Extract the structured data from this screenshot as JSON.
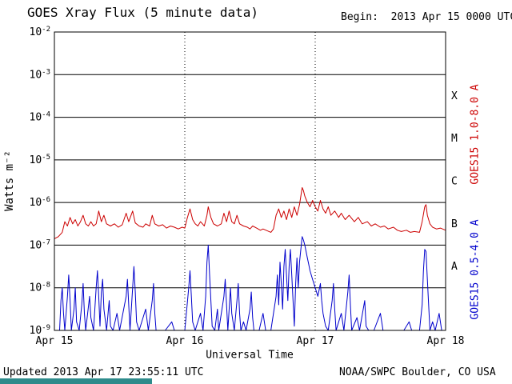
{
  "header": {
    "title": "GOES Xray Flux (5 minute data)",
    "begin_label": "Begin:  2013 Apr 15 0000 UTC"
  },
  "footer": {
    "updated": "Updated 2013 Apr 17 23:55:11 UTC",
    "source": "NOAA/SWPC Boulder, CO USA"
  },
  "colors": {
    "long_channel": "#cc0000",
    "short_channel": "#0000cc",
    "grid": "#000000",
    "background": "#ffffff",
    "bottom_bar": "#2e8b8b"
  },
  "chart_data": {
    "type": "line",
    "title": "GOES Xray Flux (5 minute data)",
    "xlabel": "Universal Time",
    "ylabel": "Watts m⁻²",
    "y_scale": "log10",
    "y_range_exponents": [
      -9,
      -2
    ],
    "y_tick_exponents": [
      -2,
      -3,
      -4,
      -5,
      -6,
      -7,
      -8,
      -9
    ],
    "x_unit": "days since 2013 Apr 15 0000 UTC",
    "x_range_days": [
      0,
      3
    ],
    "x_ticks": [
      {
        "label": "Apr 15",
        "day": 0
      },
      {
        "label": "Apr 16",
        "day": 1
      },
      {
        "label": "Apr 17",
        "day": 2
      },
      {
        "label": "Apr 18",
        "day": 3
      }
    ],
    "grid": {
      "horizontal": "solid line at each decade",
      "vertical": "dotted line at interior day boundaries"
    },
    "legend_position": "right-rotated",
    "flare_classes": [
      {
        "label": "X",
        "band_exponents": [
          -4,
          -3
        ]
      },
      {
        "label": "M",
        "band_exponents": [
          -5,
          -4
        ]
      },
      {
        "label": "C",
        "band_exponents": [
          -6,
          -5
        ]
      },
      {
        "label": "B",
        "band_exponents": [
          -7,
          -6
        ]
      },
      {
        "label": "A",
        "band_exponents": [
          -8,
          -7
        ]
      }
    ],
    "series": [
      {
        "name": "GOES15 1.0-8.0 A",
        "color_key": "long_channel",
        "points": [
          [
            0.0,
            -6.85
          ],
          [
            0.03,
            -6.8
          ],
          [
            0.06,
            -6.7
          ],
          [
            0.08,
            -6.45
          ],
          [
            0.1,
            -6.55
          ],
          [
            0.12,
            -6.35
          ],
          [
            0.14,
            -6.5
          ],
          [
            0.16,
            -6.4
          ],
          [
            0.18,
            -6.55
          ],
          [
            0.2,
            -6.45
          ],
          [
            0.22,
            -6.3
          ],
          [
            0.24,
            -6.5
          ],
          [
            0.26,
            -6.55
          ],
          [
            0.28,
            -6.45
          ],
          [
            0.3,
            -6.55
          ],
          [
            0.32,
            -6.5
          ],
          [
            0.34,
            -6.2
          ],
          [
            0.36,
            -6.45
          ],
          [
            0.38,
            -6.3
          ],
          [
            0.4,
            -6.5
          ],
          [
            0.43,
            -6.55
          ],
          [
            0.46,
            -6.5
          ],
          [
            0.49,
            -6.58
          ],
          [
            0.52,
            -6.52
          ],
          [
            0.55,
            -6.25
          ],
          [
            0.57,
            -6.45
          ],
          [
            0.6,
            -6.2
          ],
          [
            0.62,
            -6.48
          ],
          [
            0.65,
            -6.55
          ],
          [
            0.68,
            -6.58
          ],
          [
            0.7,
            -6.5
          ],
          [
            0.73,
            -6.55
          ],
          [
            0.75,
            -6.3
          ],
          [
            0.77,
            -6.5
          ],
          [
            0.8,
            -6.55
          ],
          [
            0.83,
            -6.52
          ],
          [
            0.86,
            -6.6
          ],
          [
            0.89,
            -6.55
          ],
          [
            0.92,
            -6.58
          ],
          [
            0.95,
            -6.62
          ],
          [
            0.98,
            -6.58
          ],
          [
            1.0,
            -6.6
          ],
          [
            1.02,
            -6.35
          ],
          [
            1.04,
            -6.15
          ],
          [
            1.06,
            -6.4
          ],
          [
            1.08,
            -6.5
          ],
          [
            1.1,
            -6.55
          ],
          [
            1.12,
            -6.45
          ],
          [
            1.15,
            -6.55
          ],
          [
            1.17,
            -6.3
          ],
          [
            1.18,
            -6.1
          ],
          [
            1.2,
            -6.35
          ],
          [
            1.22,
            -6.5
          ],
          [
            1.25,
            -6.55
          ],
          [
            1.28,
            -6.5
          ],
          [
            1.3,
            -6.25
          ],
          [
            1.32,
            -6.45
          ],
          [
            1.34,
            -6.2
          ],
          [
            1.36,
            -6.45
          ],
          [
            1.38,
            -6.5
          ],
          [
            1.4,
            -6.3
          ],
          [
            1.42,
            -6.5
          ],
          [
            1.45,
            -6.55
          ],
          [
            1.48,
            -6.58
          ],
          [
            1.5,
            -6.62
          ],
          [
            1.52,
            -6.55
          ],
          [
            1.55,
            -6.6
          ],
          [
            1.58,
            -6.65
          ],
          [
            1.6,
            -6.62
          ],
          [
            1.63,
            -6.66
          ],
          [
            1.66,
            -6.7
          ],
          [
            1.68,
            -6.62
          ],
          [
            1.7,
            -6.3
          ],
          [
            1.72,
            -6.15
          ],
          [
            1.74,
            -6.35
          ],
          [
            1.76,
            -6.2
          ],
          [
            1.78,
            -6.4
          ],
          [
            1.8,
            -6.15
          ],
          [
            1.82,
            -6.35
          ],
          [
            1.84,
            -6.1
          ],
          [
            1.86,
            -6.3
          ],
          [
            1.88,
            -6.05
          ],
          [
            1.9,
            -5.65
          ],
          [
            1.91,
            -5.72
          ],
          [
            1.92,
            -5.85
          ],
          [
            1.94,
            -6.0
          ],
          [
            1.96,
            -6.1
          ],
          [
            1.98,
            -5.95
          ],
          [
            2.0,
            -6.1
          ],
          [
            2.02,
            -6.2
          ],
          [
            2.04,
            -5.95
          ],
          [
            2.06,
            -6.15
          ],
          [
            2.08,
            -6.25
          ],
          [
            2.1,
            -6.1
          ],
          [
            2.12,
            -6.3
          ],
          [
            2.15,
            -6.2
          ],
          [
            2.18,
            -6.35
          ],
          [
            2.2,
            -6.25
          ],
          [
            2.23,
            -6.4
          ],
          [
            2.26,
            -6.3
          ],
          [
            2.3,
            -6.45
          ],
          [
            2.33,
            -6.35
          ],
          [
            2.36,
            -6.5
          ],
          [
            2.4,
            -6.45
          ],
          [
            2.43,
            -6.55
          ],
          [
            2.46,
            -6.5
          ],
          [
            2.5,
            -6.58
          ],
          [
            2.53,
            -6.55
          ],
          [
            2.56,
            -6.62
          ],
          [
            2.6,
            -6.58
          ],
          [
            2.63,
            -6.65
          ],
          [
            2.66,
            -6.68
          ],
          [
            2.7,
            -6.65
          ],
          [
            2.73,
            -6.7
          ],
          [
            2.76,
            -6.68
          ],
          [
            2.8,
            -6.7
          ],
          [
            2.82,
            -6.45
          ],
          [
            2.84,
            -6.1
          ],
          [
            2.85,
            -6.05
          ],
          [
            2.86,
            -6.3
          ],
          [
            2.88,
            -6.5
          ],
          [
            2.9,
            -6.58
          ],
          [
            2.93,
            -6.62
          ],
          [
            2.96,
            -6.6
          ],
          [
            3.0,
            -6.65
          ]
        ]
      },
      {
        "name": "GOES15 0.5-4.0 A",
        "color_key": "short_channel",
        "points": [
          [
            0.0,
            -9.1
          ],
          [
            0.04,
            -9.1
          ],
          [
            0.05,
            -8.3
          ],
          [
            0.06,
            -8.0
          ],
          [
            0.07,
            -8.6
          ],
          [
            0.08,
            -9.1
          ],
          [
            0.1,
            -8.2
          ],
          [
            0.11,
            -7.7
          ],
          [
            0.12,
            -8.3
          ],
          [
            0.13,
            -9.1
          ],
          [
            0.15,
            -8.5
          ],
          [
            0.16,
            -8.0
          ],
          [
            0.17,
            -8.8
          ],
          [
            0.19,
            -9.1
          ],
          [
            0.21,
            -8.4
          ],
          [
            0.22,
            -7.9
          ],
          [
            0.23,
            -8.6
          ],
          [
            0.24,
            -9.1
          ],
          [
            0.27,
            -8.2
          ],
          [
            0.28,
            -8.7
          ],
          [
            0.3,
            -9.1
          ],
          [
            0.32,
            -8.0
          ],
          [
            0.33,
            -7.6
          ],
          [
            0.34,
            -8.2
          ],
          [
            0.35,
            -8.9
          ],
          [
            0.36,
            -8.1
          ],
          [
            0.37,
            -7.8
          ],
          [
            0.38,
            -8.5
          ],
          [
            0.4,
            -9.1
          ],
          [
            0.42,
            -8.3
          ],
          [
            0.43,
            -8.9
          ],
          [
            0.45,
            -9.1
          ],
          [
            0.48,
            -8.6
          ],
          [
            0.5,
            -9.1
          ],
          [
            0.55,
            -8.2
          ],
          [
            0.56,
            -7.8
          ],
          [
            0.57,
            -8.4
          ],
          [
            0.58,
            -9.1
          ],
          [
            0.6,
            -8.0
          ],
          [
            0.61,
            -7.5
          ],
          [
            0.62,
            -8.1
          ],
          [
            0.63,
            -8.8
          ],
          [
            0.65,
            -9.1
          ],
          [
            0.7,
            -8.5
          ],
          [
            0.72,
            -9.1
          ],
          [
            0.75,
            -8.3
          ],
          [
            0.76,
            -7.9
          ],
          [
            0.77,
            -8.6
          ],
          [
            0.78,
            -9.1
          ],
          [
            0.85,
            -9.1
          ],
          [
            0.9,
            -8.8
          ],
          [
            0.92,
            -9.1
          ],
          [
            1.0,
            -9.1
          ],
          [
            1.03,
            -8.0
          ],
          [
            1.04,
            -7.6
          ],
          [
            1.05,
            -8.2
          ],
          [
            1.06,
            -8.8
          ],
          [
            1.08,
            -9.1
          ],
          [
            1.12,
            -8.6
          ],
          [
            1.14,
            -9.1
          ],
          [
            1.16,
            -8.2
          ],
          [
            1.17,
            -7.4
          ],
          [
            1.18,
            -7.0
          ],
          [
            1.19,
            -7.7
          ],
          [
            1.2,
            -8.3
          ],
          [
            1.21,
            -8.9
          ],
          [
            1.23,
            -9.1
          ],
          [
            1.25,
            -8.5
          ],
          [
            1.26,
            -9.1
          ],
          [
            1.3,
            -8.2
          ],
          [
            1.31,
            -7.8
          ],
          [
            1.32,
            -8.4
          ],
          [
            1.33,
            -9.1
          ],
          [
            1.35,
            -8.0
          ],
          [
            1.36,
            -8.6
          ],
          [
            1.38,
            -9.1
          ],
          [
            1.4,
            -8.3
          ],
          [
            1.41,
            -7.9
          ],
          [
            1.42,
            -8.6
          ],
          [
            1.43,
            -9.1
          ],
          [
            1.45,
            -8.8
          ],
          [
            1.47,
            -9.1
          ],
          [
            1.5,
            -8.5
          ],
          [
            1.51,
            -8.1
          ],
          [
            1.52,
            -8.7
          ],
          [
            1.53,
            -9.1
          ],
          [
            1.57,
            -9.1
          ],
          [
            1.6,
            -8.6
          ],
          [
            1.62,
            -9.1
          ],
          [
            1.66,
            -9.1
          ],
          [
            1.7,
            -8.2
          ],
          [
            1.71,
            -7.7
          ],
          [
            1.72,
            -8.4
          ],
          [
            1.73,
            -7.4
          ],
          [
            1.74,
            -7.9
          ],
          [
            1.75,
            -8.5
          ],
          [
            1.76,
            -7.5
          ],
          [
            1.77,
            -7.1
          ],
          [
            1.78,
            -7.7
          ],
          [
            1.79,
            -8.3
          ],
          [
            1.8,
            -7.5
          ],
          [
            1.81,
            -7.1
          ],
          [
            1.82,
            -7.7
          ],
          [
            1.83,
            -8.3
          ],
          [
            1.84,
            -8.9
          ],
          [
            1.85,
            -7.9
          ],
          [
            1.86,
            -7.3
          ],
          [
            1.87,
            -8.0
          ],
          [
            1.88,
            -7.4
          ],
          [
            1.9,
            -6.8
          ],
          [
            1.91,
            -6.88
          ],
          [
            1.92,
            -7.0
          ],
          [
            1.93,
            -7.15
          ],
          [
            1.94,
            -7.3
          ],
          [
            1.95,
            -7.45
          ],
          [
            1.96,
            -7.6
          ],
          [
            1.98,
            -7.8
          ],
          [
            2.0,
            -8.0
          ],
          [
            2.02,
            -8.2
          ],
          [
            2.04,
            -7.9
          ],
          [
            2.05,
            -8.3
          ],
          [
            2.06,
            -8.6
          ],
          [
            2.08,
            -8.9
          ],
          [
            2.1,
            -9.1
          ],
          [
            2.13,
            -8.3
          ],
          [
            2.14,
            -7.9
          ],
          [
            2.15,
            -8.5
          ],
          [
            2.16,
            -9.1
          ],
          [
            2.2,
            -8.6
          ],
          [
            2.22,
            -9.1
          ],
          [
            2.25,
            -8.1
          ],
          [
            2.26,
            -7.7
          ],
          [
            2.27,
            -8.4
          ],
          [
            2.28,
            -9.1
          ],
          [
            2.32,
            -8.7
          ],
          [
            2.34,
            -9.1
          ],
          [
            2.38,
            -8.3
          ],
          [
            2.39,
            -8.9
          ],
          [
            2.41,
            -9.1
          ],
          [
            2.45,
            -9.1
          ],
          [
            2.5,
            -8.6
          ],
          [
            2.52,
            -9.1
          ],
          [
            2.57,
            -9.1
          ],
          [
            2.62,
            -9.1
          ],
          [
            2.68,
            -9.1
          ],
          [
            2.72,
            -8.8
          ],
          [
            2.74,
            -9.1
          ],
          [
            2.8,
            -9.1
          ],
          [
            2.82,
            -8.4
          ],
          [
            2.83,
            -7.6
          ],
          [
            2.84,
            -7.1
          ],
          [
            2.85,
            -7.15
          ],
          [
            2.86,
            -7.8
          ],
          [
            2.87,
            -8.4
          ],
          [
            2.88,
            -9.1
          ],
          [
            2.9,
            -8.8
          ],
          [
            2.92,
            -9.1
          ],
          [
            2.95,
            -8.6
          ],
          [
            2.97,
            -9.1
          ],
          [
            3.0,
            -9.1
          ]
        ]
      }
    ]
  }
}
